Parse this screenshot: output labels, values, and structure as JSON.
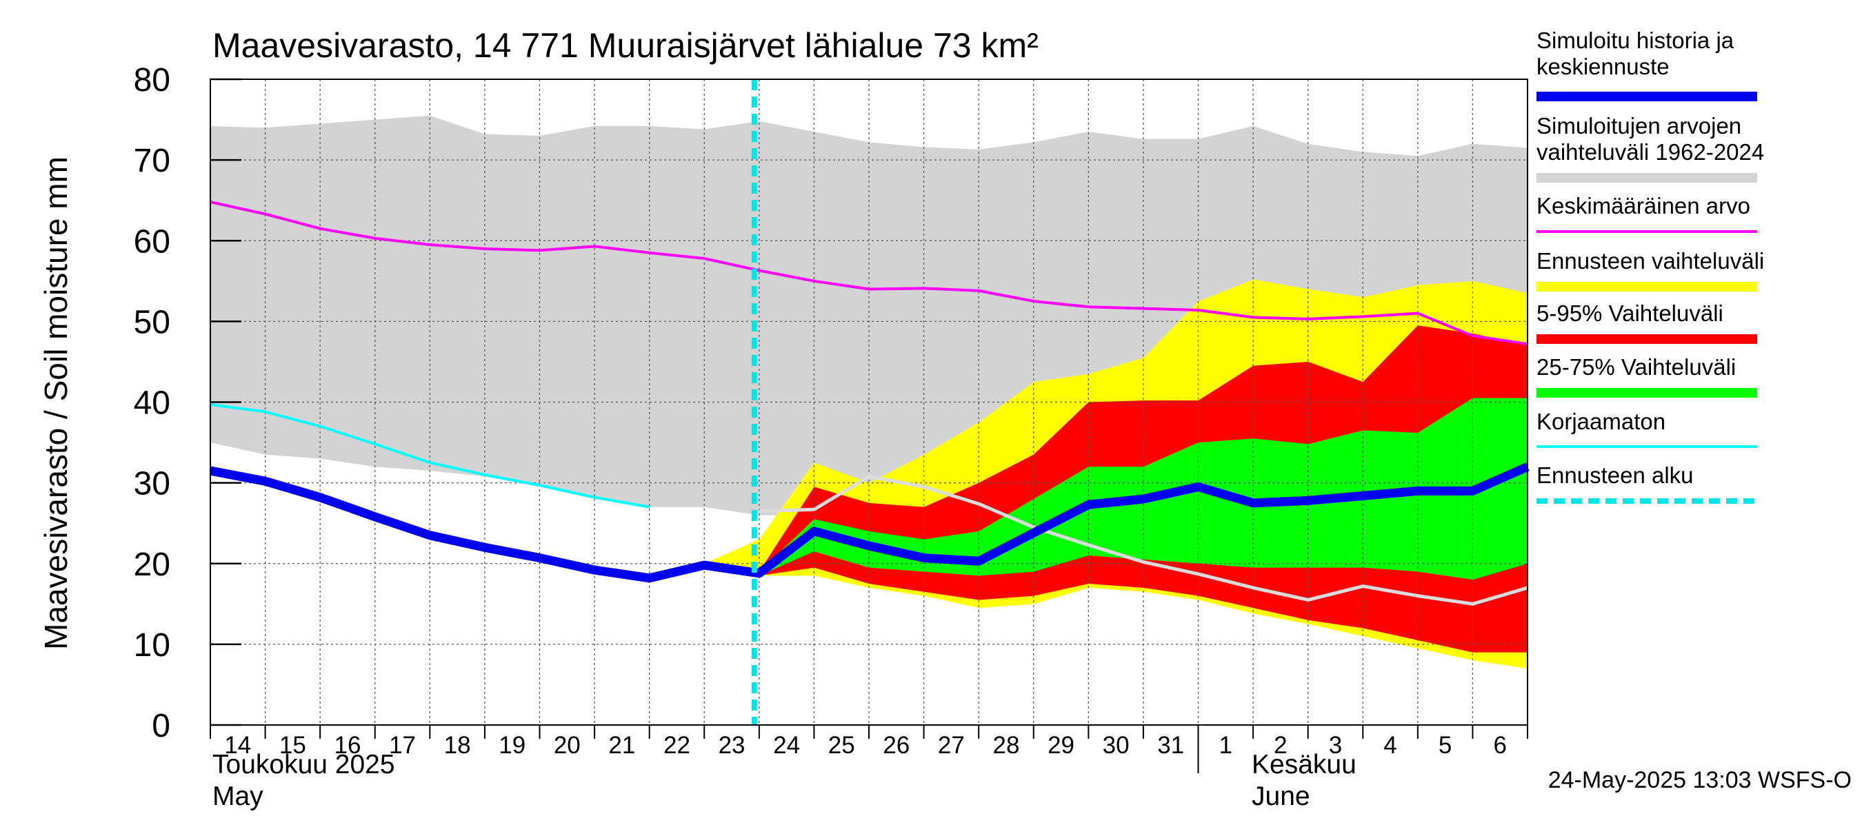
{
  "chart_data": {
    "type": "area",
    "title": "Maavesivarasto, 14 771 Muuraisjärvet lähialue 73 km²",
    "ylabel": "Maavesivarasto / Soil moisture   mm",
    "ylim": [
      0,
      80
    ],
    "yticks": [
      "0",
      "10",
      "20",
      "30",
      "40",
      "50",
      "60",
      "70",
      "80"
    ],
    "x_dates": [
      "2025-05-14",
      "2025-05-15",
      "2025-05-16",
      "2025-05-17",
      "2025-05-18",
      "2025-05-19",
      "2025-05-20",
      "2025-05-21",
      "2025-05-22",
      "2025-05-23",
      "2025-05-24",
      "2025-05-25",
      "2025-05-26",
      "2025-05-27",
      "2025-05-28",
      "2025-05-29",
      "2025-05-30",
      "2025-05-31",
      "2025-06-01",
      "2025-06-02",
      "2025-06-03",
      "2025-06-04",
      "2025-06-05",
      "2025-06-06",
      "2025-06-07"
    ],
    "xtick_labels": [
      "14",
      "15",
      "16",
      "17",
      "18",
      "19",
      "20",
      "21",
      "22",
      "23",
      "24",
      "25",
      "26",
      "27",
      "28",
      "29",
      "30",
      "31",
      "1",
      "2",
      "3",
      "4",
      "5",
      "6"
    ],
    "month_labels": [
      {
        "fi": "Toukokuu  2025",
        "en": "May"
      },
      {
        "fi": "Kesäkuu",
        "en": "June"
      }
    ],
    "forecast_start": "2025-05-24",
    "footer": "24-May-2025 13:03 WSFS-O",
    "legend": [
      {
        "label": "Simuloitu historia ja keskiennuste",
        "color": "#0000ee",
        "style": "thick"
      },
      {
        "label": "Simuloitujen arvojen vaihteluväli 1962-2024",
        "color": "#d3d3d3",
        "style": "thick"
      },
      {
        "label": "Keskimääräinen arvo",
        "color": "#ff00ff",
        "style": "thin"
      },
      {
        "label": "Ennusteen vaihteluväli",
        "color": "#ffff00",
        "style": "thick"
      },
      {
        "label": "5-95% Vaihteluväli",
        "color": "#ff0000",
        "style": "thick"
      },
      {
        "label": "25-75% Vaihteluväli",
        "color": "#00ff00",
        "style": "thick"
      },
      {
        "label": "Korjaamaton",
        "color": "#00ffff",
        "style": "thin"
      },
      {
        "label": "Ennusteen alku",
        "color": "#00e5e5",
        "style": "dashed"
      }
    ],
    "series": {
      "history_range": {
        "x": [
          0,
          1,
          2,
          3,
          4,
          5,
          6,
          7,
          8,
          9,
          10,
          11,
          12,
          13,
          14,
          15,
          16,
          17,
          18,
          19,
          20,
          21,
          22,
          23,
          24
        ],
        "upper": [
          74.2,
          74.0,
          74.5,
          75.0,
          75.5,
          73.2,
          73.0,
          74.2,
          74.2,
          73.8,
          74.8,
          73.5,
          72.2,
          71.6,
          71.3,
          72.2,
          73.5,
          72.6,
          72.6,
          74.2,
          72.0,
          71.0,
          70.5,
          72.0,
          71.5
        ],
        "lower": [
          35.0,
          33.5,
          33.0,
          32.0,
          31.5,
          30.8,
          29.5,
          28.0,
          27.0,
          27.0,
          26.0,
          26.0,
          26.0,
          25.5,
          24.5,
          23.5,
          21.0,
          20.0,
          20.0,
          19.5,
          19.0,
          18.5,
          18.0,
          17.5,
          17.0
        ]
      },
      "forecast_range": {
        "x": [
          9,
          10,
          11,
          12,
          13,
          14,
          15,
          16,
          17,
          18,
          19,
          20,
          21,
          22,
          23,
          24
        ],
        "upper": [
          20,
          23,
          32.5,
          30,
          33.5,
          37.5,
          42.5,
          43.5,
          45.5,
          52.5,
          55.2,
          54,
          53,
          54.5,
          55,
          53.5
        ],
        "lower": [
          20,
          18.5,
          18.5,
          17,
          16,
          14.5,
          15,
          17,
          16.5,
          15.5,
          13.8,
          12.5,
          11,
          9.5,
          8,
          7
        ]
      },
      "p5_95": {
        "x": [
          10,
          11,
          12,
          13,
          14,
          15,
          16,
          17,
          18,
          19,
          20,
          21,
          22,
          23,
          24
        ],
        "upper": [
          19,
          29.5,
          27.5,
          27,
          30,
          33.5,
          40,
          40.2,
          40.2,
          44.5,
          45,
          42.5,
          49.5,
          48.5,
          47
        ],
        "lower": [
          18.5,
          19.5,
          17.5,
          16.5,
          15.5,
          16,
          17.5,
          17,
          16,
          14.5,
          13,
          12,
          10.5,
          9,
          9
        ]
      },
      "p25_75": {
        "x": [
          10,
          11,
          12,
          13,
          14,
          15,
          16,
          17,
          18,
          19,
          20,
          21,
          22,
          23,
          24
        ],
        "upper": [
          19,
          25.5,
          24,
          23,
          24,
          28,
          32,
          32,
          35,
          35.5,
          34.8,
          36.5,
          36.2,
          40.5,
          40.5
        ],
        "lower": [
          18.5,
          21.5,
          19.5,
          19,
          18.5,
          19,
          21,
          20.5,
          20,
          19.5,
          19.5,
          19.5,
          19,
          18,
          20
        ]
      },
      "mean": {
        "x": [
          0,
          1,
          2,
          3,
          4,
          5,
          6,
          7,
          8,
          9,
          10,
          11,
          12,
          13,
          14,
          15,
          16,
          17,
          18,
          19,
          20,
          21,
          22,
          23,
          24
        ],
        "y": [
          64.8,
          63.3,
          61.5,
          60.3,
          59.5,
          59.0,
          58.8,
          59.3,
          58.5,
          57.8,
          56.3,
          55.0,
          54.0,
          54.1,
          53.8,
          52.5,
          51.8,
          51.6,
          51.4,
          50.5,
          50.3,
          50.6,
          51.0,
          48.2,
          47.2
        ]
      },
      "uncorrected": {
        "x": [
          0,
          1,
          2,
          3,
          4,
          5,
          6,
          7,
          8,
          9,
          10,
          11,
          12,
          13,
          14,
          15,
          16,
          17,
          18,
          19,
          20,
          21,
          22,
          23,
          24
        ],
        "y": [
          39.7,
          38.8,
          37.0,
          34.8,
          32.5,
          31.0,
          29.7,
          28.2,
          27.0,
          27.0,
          26.5,
          26.7,
          30.8,
          29.5,
          27.4,
          24.5,
          22.3,
          20.2,
          18.7,
          17.0,
          15.5,
          17.2,
          16.0,
          15.0,
          17.0
        ]
      },
      "simulated": {
        "x": [
          0,
          1,
          2,
          3,
          4,
          5,
          6,
          7,
          8,
          9,
          10,
          11,
          12,
          13,
          14,
          15,
          16,
          17,
          18,
          19,
          20,
          21,
          22,
          23,
          24
        ],
        "y": [
          31.5,
          30.2,
          28.2,
          25.8,
          23.5,
          22.0,
          20.7,
          19.2,
          18.2,
          19.8,
          18.8,
          24.0,
          22.2,
          20.7,
          20.3,
          23.8,
          27.3,
          28.0,
          29.5,
          27.5,
          27.8,
          28.4,
          29.0,
          29.0,
          32.0
        ]
      }
    }
  }
}
